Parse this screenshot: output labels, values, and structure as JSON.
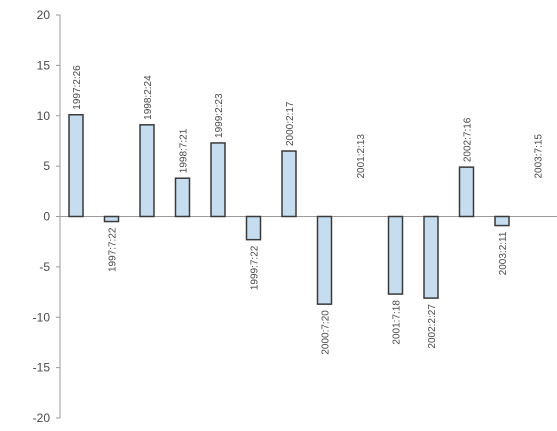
{
  "colors": {
    "bar_fill": "#c6dcef",
    "bar_stroke": "#3a3a3a",
    "axis": "#9a9a9a",
    "text": "#4a4a4a"
  },
  "chart_data": {
    "type": "bar",
    "title": "",
    "xlabel": "",
    "ylabel": "",
    "ylim": [
      -20,
      20
    ],
    "yticks": [
      20,
      15,
      10,
      5,
      0,
      -5,
      -10,
      -15,
      -20
    ],
    "grid": false,
    "legend": "none",
    "categories": [
      "1997:2:26",
      "1997:7:22",
      "1998:2:24",
      "1998:7:21",
      "1999:2:23",
      "1999:7:22",
      "2000:2:17",
      "2000:7:20",
      "2001:2:13",
      "2001:7:18",
      "2002:2:27",
      "2002:7:16",
      "2003:2:11",
      "2003:7:15"
    ],
    "values": [
      10.1,
      -0.5,
      9.1,
      3.8,
      7.3,
      -2.3,
      6.5,
      -8.7,
      0,
      -7.7,
      -8.1,
      4.9,
      -0.9,
      0
    ]
  }
}
